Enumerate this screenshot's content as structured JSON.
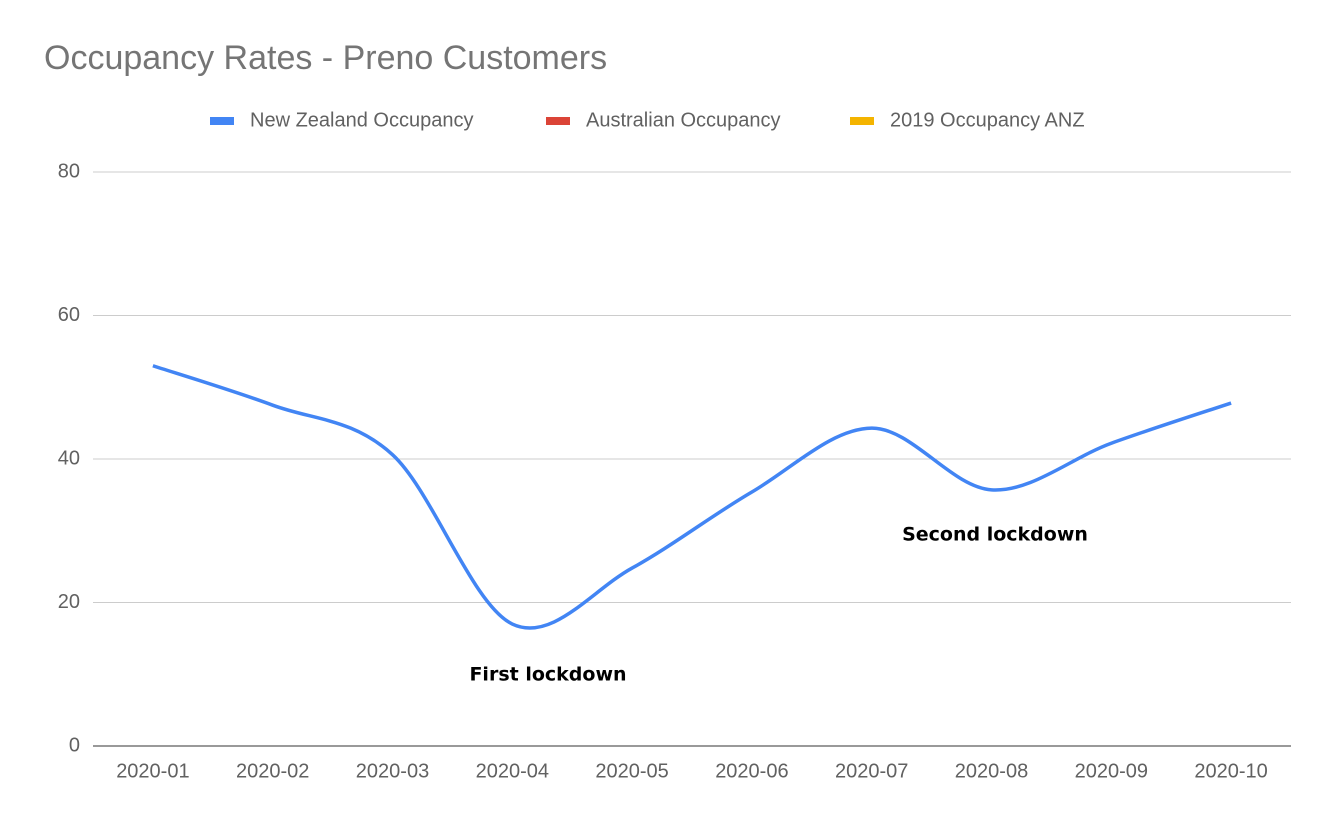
{
  "chart_data": {
    "type": "line",
    "title": "Occupancy Rates - Preno Customers",
    "categories": [
      "2020-01",
      "2020-02",
      "2020-03",
      "2020-04",
      "2020-05",
      "2020-06",
      "2020-07",
      "2020-08",
      "2020-09",
      "2020-10"
    ],
    "series": [
      {
        "name": "New Zealand Occupancy",
        "color": "#4285f4",
        "values": [
          53.0,
          47.5,
          40.6,
          17.0,
          24.8,
          35.4,
          44.3,
          35.7,
          42.2,
          47.8
        ]
      },
      {
        "name": "Australian Occupancy",
        "color": "#db4437",
        "values": [
          null,
          null,
          null,
          null,
          null,
          null,
          null,
          null,
          null,
          null
        ]
      },
      {
        "name": "2019 Occupancy ANZ",
        "color": "#f4b400",
        "values": [
          null,
          null,
          null,
          null,
          null,
          null,
          null,
          null,
          null,
          null
        ]
      }
    ],
    "annotations": [
      "First lockdown",
      "Second lockdown"
    ],
    "ylim": [
      0,
      80
    ],
    "yticks": [
      0,
      20,
      40,
      60,
      80
    ],
    "grid": true,
    "legend": "top"
  }
}
